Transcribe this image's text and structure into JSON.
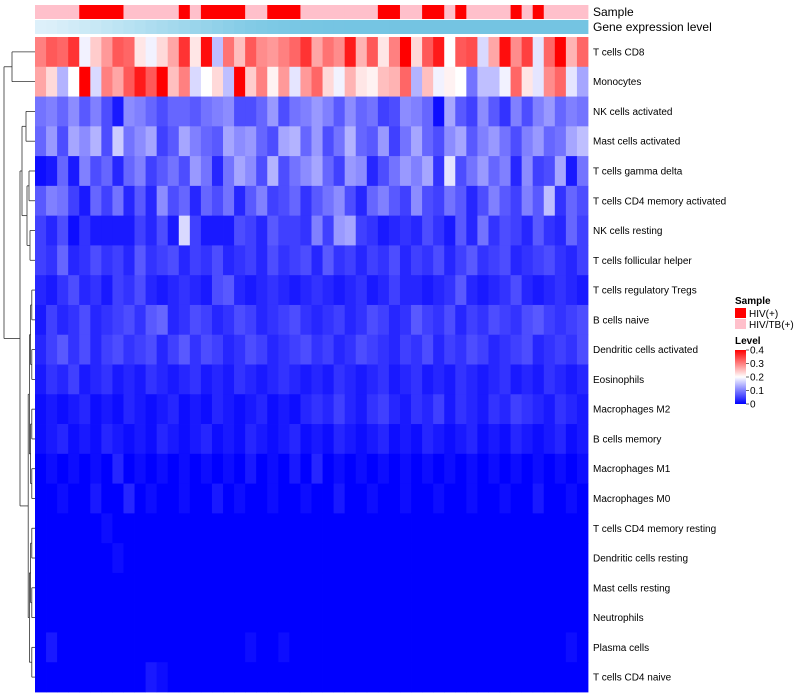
{
  "chart_data": {
    "type": "heatmap",
    "title": "",
    "column_annotations": [
      {
        "name": "Sample",
        "label": "Sample"
      },
      {
        "name": "Gene expression level",
        "label": "Gene expression level"
      }
    ],
    "rows": [
      "T cells CD8",
      "Monocytes",
      "NK cells activated",
      "Mast cells activated",
      "T cells gamma delta",
      "T cells CD4 memory activated",
      "NK cells resting",
      "T cells follicular helper",
      "T cells regulatory  Tregs",
      "B cells naive",
      "Dendritic cells activated",
      "Eosinophils",
      "Macrophages M2",
      "B cells memory",
      "Macrophages M1",
      "Macrophages M0",
      "T cells CD4 memory resting",
      "Dendritic cells resting",
      "Mast cells resting",
      "Neutrophils",
      "Plasma cells",
      "T cells CD4 naive"
    ],
    "sample_groups": [
      1,
      1,
      1,
      1,
      0,
      0,
      0,
      0,
      1,
      1,
      1,
      1,
      1,
      0,
      1,
      0,
      0,
      0,
      0,
      1,
      1,
      0,
      0,
      0,
      1,
      1,
      1,
      1,
      1,
      1,
      1,
      0,
      0,
      1,
      1,
      0,
      0,
      1,
      0,
      1,
      1,
      1,
      1,
      0,
      1,
      0,
      1,
      1,
      1,
      1
    ],
    "expression_level_colors": [
      "#ddf0fa",
      "#dbeff9",
      "#d6edf8",
      "#d1ebf7",
      "#cceaf6",
      "#c8e8f5",
      "#c2e6f4",
      "#bde4f3",
      "#b8e2f2",
      "#b3e0f1",
      "#aeddf0",
      "#a9dbee",
      "#a4d9ed",
      "#9fd7ec",
      "#9ad5eb",
      "#96d3ea",
      "#91d1e9",
      "#8ccfe8",
      "#87cde7",
      "#83cbe6",
      "#80cae5",
      "#7dc9e5",
      "#7bc8e4",
      "#79c7e4",
      "#78c6e3",
      "#77c6e3",
      "#76c5e3",
      "#76c5e3",
      "#75c5e3",
      "#75c5e3",
      "#75c5e3",
      "#75c5e3",
      "#74c4e2",
      "#74c4e2",
      "#74c4e2",
      "#74c4e2",
      "#74c4e2",
      "#74c4e2",
      "#74c4e2",
      "#74c4e2",
      "#74c4e2",
      "#74c4e2",
      "#74c4e2",
      "#74c4e2",
      "#74c4e2",
      "#74c4e2",
      "#74c4e2",
      "#74c4e2",
      "#74c4e2",
      "#74c4e2"
    ],
    "value_range": [
      0,
      0.4
    ],
    "color_scale": [
      "#0000ff",
      "#ffffff",
      "#ff0000"
    ],
    "legend": {
      "sample_title": "Sample",
      "sample_entries": [
        {
          "label": "HIV(+)",
          "color": "#ff0000"
        },
        {
          "label": "HIV/TB(+)",
          "color": "#ffc0cb"
        }
      ],
      "level_title": "Level",
      "level_ticks": [
        {
          "value": 0.4,
          "label": "0.4"
        },
        {
          "value": 0.3,
          "label": "0.3"
        },
        {
          "value": 0.2,
          "label": "0.2"
        },
        {
          "value": 0.1,
          "label": "0.1"
        },
        {
          "value": 0,
          "label": "0"
        }
      ]
    },
    "values": [
      [
        0.3,
        0.33,
        0.32,
        0.36,
        0.19,
        0.24,
        0.28,
        0.33,
        0.32,
        0.22,
        0.19,
        0.23,
        0.27,
        0.36,
        0.22,
        0.39,
        0.15,
        0.31,
        0.25,
        0.33,
        0.29,
        0.28,
        0.3,
        0.32,
        0.36,
        0.27,
        0.31,
        0.29,
        0.38,
        0.26,
        0.33,
        0.22,
        0.3,
        0.42,
        0.23,
        0.33,
        0.38,
        0.2,
        0.33,
        0.34,
        0.17,
        0.27,
        0.39,
        0.29,
        0.35,
        0.18,
        0.32,
        0.4,
        0.26,
        0.32
      ],
      [
        0.27,
        0.23,
        0.14,
        0.2,
        0.4,
        0.17,
        0.3,
        0.27,
        0.33,
        0.38,
        0.33,
        0.4,
        0.25,
        0.3,
        0.17,
        0.2,
        0.23,
        0.15,
        0.4,
        0.24,
        0.3,
        0.21,
        0.28,
        0.18,
        0.28,
        0.32,
        0.23,
        0.19,
        0.26,
        0.22,
        0.21,
        0.25,
        0.26,
        0.32,
        0.14,
        0.25,
        0.19,
        0.21,
        0.2,
        0.09,
        0.15,
        0.15,
        0.19,
        0.32,
        0.22,
        0.18,
        0.29,
        0.32,
        0.18,
        0.13
      ],
      [
        0.09,
        0.1,
        0.08,
        0.11,
        0.07,
        0.1,
        0.06,
        0.02,
        0.11,
        0.1,
        0.08,
        0.06,
        0.08,
        0.08,
        0.07,
        0.09,
        0.1,
        0.11,
        0.06,
        0.06,
        0.08,
        0.12,
        0.06,
        0.09,
        0.1,
        0.12,
        0.1,
        0.07,
        0.11,
        0.08,
        0.09,
        0.05,
        0.06,
        0.11,
        0.1,
        0.08,
        0.01,
        0.13,
        0.07,
        0.05,
        0.11,
        0.07,
        0.04,
        0.1,
        0.06,
        0.1,
        0.12,
        0.08,
        0.1,
        0.09
      ],
      [
        0.08,
        0.12,
        0.06,
        0.13,
        0.11,
        0.14,
        0.06,
        0.16,
        0.09,
        0.11,
        0.13,
        0.05,
        0.07,
        0.13,
        0.1,
        0.08,
        0.07,
        0.13,
        0.11,
        0.12,
        0.08,
        0.06,
        0.13,
        0.14,
        0.08,
        0.12,
        0.06,
        0.09,
        0.14,
        0.08,
        0.07,
        0.12,
        0.05,
        0.09,
        0.13,
        0.08,
        0.06,
        0.11,
        0.13,
        0.07,
        0.1,
        0.12,
        0.09,
        0.06,
        0.1,
        0.12,
        0.08,
        0.09,
        0.13,
        0.15
      ],
      [
        0.01,
        0.02,
        0.08,
        0.02,
        0.1,
        0.06,
        0.08,
        0.03,
        0.08,
        0.1,
        0.05,
        0.07,
        0.09,
        0.06,
        0.12,
        0.09,
        0.03,
        0.09,
        0.13,
        0.11,
        0.06,
        0.14,
        0.06,
        0.09,
        0.11,
        0.13,
        0.08,
        0.05,
        0.12,
        0.11,
        0.03,
        0.06,
        0.09,
        0.12,
        0.1,
        0.13,
        0.04,
        0.18,
        0.06,
        0.09,
        0.12,
        0.08,
        0.1,
        0.03,
        0.11,
        0.05,
        0.06,
        0.13,
        0.02,
        0.09
      ],
      [
        0.07,
        0.1,
        0.09,
        0.05,
        0.02,
        0.08,
        0.05,
        0.09,
        0.03,
        0.07,
        0.03,
        0.11,
        0.06,
        0.08,
        0.03,
        0.08,
        0.06,
        0.09,
        0.03,
        0.07,
        0.1,
        0.05,
        0.06,
        0.08,
        0.04,
        0.07,
        0.09,
        0.11,
        0.06,
        0.03,
        0.08,
        0.1,
        0.07,
        0.05,
        0.11,
        0.06,
        0.05,
        0.09,
        0.07,
        0.03,
        0.06,
        0.1,
        0.07,
        0.05,
        0.1,
        0.07,
        0.15,
        0.04,
        0.08,
        0.06
      ],
      [
        0.05,
        0.03,
        0.06,
        0.01,
        0.04,
        0.02,
        0.02,
        0.02,
        0.02,
        0.05,
        0.03,
        0.06,
        0.02,
        0.17,
        0.05,
        0.02,
        0.02,
        0.02,
        0.06,
        0.05,
        0.03,
        0.07,
        0.05,
        0.05,
        0.04,
        0.1,
        0.05,
        0.12,
        0.13,
        0.05,
        0.04,
        0.02,
        0.03,
        0.04,
        0.03,
        0.06,
        0.04,
        0.02,
        0.07,
        0.03,
        0.09,
        0.04,
        0.06,
        0.05,
        0.03,
        0.07,
        0.04,
        0.03,
        0.08,
        0.05
      ],
      [
        0.05,
        0.04,
        0.08,
        0.03,
        0.04,
        0.06,
        0.04,
        0.05,
        0.03,
        0.07,
        0.04,
        0.05,
        0.06,
        0.03,
        0.05,
        0.04,
        0.06,
        0.03,
        0.04,
        0.05,
        0.03,
        0.06,
        0.04,
        0.05,
        0.06,
        0.03,
        0.07,
        0.04,
        0.05,
        0.03,
        0.05,
        0.04,
        0.06,
        0.03,
        0.05,
        0.04,
        0.06,
        0.03,
        0.05,
        0.07,
        0.04,
        0.05,
        0.06,
        0.03,
        0.04,
        0.05,
        0.06,
        0.04,
        0.03,
        0.05
      ],
      [
        0.03,
        0.02,
        0.04,
        0.06,
        0.03,
        0.04,
        0.02,
        0.05,
        0.04,
        0.06,
        0.03,
        0.02,
        0.03,
        0.04,
        0.03,
        0.02,
        0.06,
        0.07,
        0.03,
        0.02,
        0.03,
        0.04,
        0.03,
        0.02,
        0.03,
        0.04,
        0.03,
        0.02,
        0.03,
        0.04,
        0.02,
        0.03,
        0.05,
        0.03,
        0.03,
        0.02,
        0.03,
        0.04,
        0.07,
        0.03,
        0.02,
        0.03,
        0.04,
        0.06,
        0.03,
        0.02,
        0.03,
        0.04,
        0.03,
        0.02
      ],
      [
        0.02,
        0.05,
        0.03,
        0.04,
        0.06,
        0.03,
        0.04,
        0.05,
        0.06,
        0.04,
        0.07,
        0.08,
        0.03,
        0.04,
        0.06,
        0.05,
        0.03,
        0.04,
        0.06,
        0.05,
        0.03,
        0.04,
        0.05,
        0.06,
        0.04,
        0.03,
        0.04,
        0.05,
        0.03,
        0.04,
        0.06,
        0.05,
        0.03,
        0.04,
        0.07,
        0.05,
        0.04,
        0.06,
        0.03,
        0.05,
        0.04,
        0.06,
        0.05,
        0.04,
        0.06,
        0.07,
        0.05,
        0.04,
        0.05,
        0.06
      ],
      [
        0.03,
        0.05,
        0.07,
        0.04,
        0.06,
        0.03,
        0.05,
        0.06,
        0.04,
        0.05,
        0.06,
        0.03,
        0.05,
        0.07,
        0.04,
        0.06,
        0.05,
        0.03,
        0.04,
        0.06,
        0.05,
        0.03,
        0.04,
        0.05,
        0.06,
        0.04,
        0.05,
        0.03,
        0.04,
        0.06,
        0.05,
        0.04,
        0.03,
        0.05,
        0.04,
        0.06,
        0.03,
        0.05,
        0.04,
        0.06,
        0.05,
        0.03,
        0.04,
        0.05,
        0.06,
        0.03,
        0.04,
        0.05,
        0.04,
        0.06
      ],
      [
        0.02,
        0.04,
        0.03,
        0.05,
        0.02,
        0.03,
        0.04,
        0.02,
        0.03,
        0.02,
        0.04,
        0.03,
        0.02,
        0.03,
        0.04,
        0.02,
        0.03,
        0.02,
        0.04,
        0.03,
        0.02,
        0.03,
        0.04,
        0.03,
        0.02,
        0.03,
        0.02,
        0.04,
        0.03,
        0.02,
        0.03,
        0.04,
        0.02,
        0.03,
        0.04,
        0.02,
        0.03,
        0.02,
        0.04,
        0.03,
        0.02,
        0.03,
        0.04,
        0.02,
        0.03,
        0.02,
        0.04,
        0.03,
        0.02,
        0.03
      ],
      [
        0.01,
        0.02,
        0.01,
        0.02,
        0.03,
        0.01,
        0.02,
        0.01,
        0.03,
        0.02,
        0.01,
        0.02,
        0.03,
        0.01,
        0.02,
        0.01,
        0.03,
        0.02,
        0.01,
        0.02,
        0.03,
        0.01,
        0.02,
        0.01,
        0.03,
        0.04,
        0.03,
        0.05,
        0.03,
        0.02,
        0.04,
        0.05,
        0.03,
        0.02,
        0.04,
        0.03,
        0.05,
        0.02,
        0.04,
        0.03,
        0.02,
        0.04,
        0.03,
        0.05,
        0.04,
        0.03,
        0.02,
        0.04,
        0.03,
        0.02
      ],
      [
        0.01,
        0.02,
        0.03,
        0.01,
        0.02,
        0.01,
        0.03,
        0.02,
        0.01,
        0.02,
        0.01,
        0.03,
        0.02,
        0.01,
        0.02,
        0.03,
        0.01,
        0.02,
        0.01,
        0.03,
        0.02,
        0.01,
        0.02,
        0.03,
        0.01,
        0.02,
        0.01,
        0.03,
        0.02,
        0.01,
        0.02,
        0.03,
        0.01,
        0.02,
        0.01,
        0.03,
        0.02,
        0.01,
        0.02,
        0.03,
        0.01,
        0.02,
        0.01,
        0.03,
        0.02,
        0.01,
        0.02,
        0.03,
        0.01,
        0.02
      ],
      [
        0.0,
        0.01,
        0.0,
        0.01,
        0.0,
        0.01,
        0.0,
        0.03,
        0.0,
        0.01,
        0.0,
        0.01,
        0.0,
        0.01,
        0.0,
        0.01,
        0.0,
        0.01,
        0.0,
        0.02,
        0.0,
        0.01,
        0.0,
        0.02,
        0.0,
        0.03,
        0.0,
        0.01,
        0.0,
        0.01,
        0.0,
        0.01,
        0.0,
        0.01,
        0.0,
        0.01,
        0.0,
        0.01,
        0.0,
        0.01,
        0.0,
        0.01,
        0.0,
        0.01,
        0.0,
        0.01,
        0.0,
        0.01,
        0.0,
        0.01
      ],
      [
        0.0,
        0.0,
        0.01,
        0.0,
        0.0,
        0.02,
        0.0,
        0.0,
        0.03,
        0.0,
        0.01,
        0.0,
        0.0,
        0.01,
        0.0,
        0.0,
        0.02,
        0.0,
        0.01,
        0.0,
        0.0,
        0.01,
        0.0,
        0.0,
        0.01,
        0.0,
        0.0,
        0.02,
        0.0,
        0.0,
        0.01,
        0.0,
        0.0,
        0.01,
        0.0,
        0.0,
        0.01,
        0.0,
        0.0,
        0.01,
        0.0,
        0.0,
        0.01,
        0.0,
        0.0,
        0.02,
        0.0,
        0.0,
        0.01,
        0.0
      ],
      [
        0.0,
        0.0,
        0.0,
        0.0,
        0.0,
        0.0,
        0.01,
        0.0,
        0.0,
        0.0,
        0.0,
        0.0,
        0.0,
        0.0,
        0.0,
        0.0,
        0.0,
        0.0,
        0.0,
        0.0,
        0.0,
        0.0,
        0.0,
        0.0,
        0.0,
        0.0,
        0.0,
        0.0,
        0.0,
        0.0,
        0.0,
        0.0,
        0.0,
        0.0,
        0.0,
        0.0,
        0.0,
        0.0,
        0.0,
        0.0,
        0.0,
        0.0,
        0.0,
        0.0,
        0.0,
        0.0,
        0.0,
        0.0,
        0.0,
        0.0
      ],
      [
        0.0,
        0.0,
        0.0,
        0.0,
        0.0,
        0.0,
        0.0,
        0.01,
        0.0,
        0.0,
        0.0,
        0.0,
        0.0,
        0.0,
        0.0,
        0.0,
        0.0,
        0.0,
        0.0,
        0.0,
        0.0,
        0.0,
        0.0,
        0.0,
        0.0,
        0.0,
        0.0,
        0.0,
        0.0,
        0.0,
        0.0,
        0.0,
        0.0,
        0.0,
        0.0,
        0.0,
        0.0,
        0.0,
        0.0,
        0.0,
        0.0,
        0.0,
        0.0,
        0.0,
        0.0,
        0.0,
        0.0,
        0.0,
        0.0,
        0.0
      ],
      [
        0.0,
        0.0,
        0.0,
        0.0,
        0.0,
        0.0,
        0.0,
        0.0,
        0.0,
        0.0,
        0.0,
        0.0,
        0.0,
        0.0,
        0.0,
        0.0,
        0.0,
        0.0,
        0.0,
        0.0,
        0.0,
        0.0,
        0.0,
        0.0,
        0.0,
        0.0,
        0.0,
        0.0,
        0.0,
        0.0,
        0.0,
        0.0,
        0.0,
        0.0,
        0.0,
        0.0,
        0.0,
        0.0,
        0.0,
        0.0,
        0.0,
        0.0,
        0.0,
        0.0,
        0.0,
        0.0,
        0.0,
        0.0,
        0.0,
        0.0
      ],
      [
        0.0,
        0.0,
        0.0,
        0.0,
        0.0,
        0.0,
        0.0,
        0.0,
        0.0,
        0.0,
        0.0,
        0.0,
        0.0,
        0.0,
        0.0,
        0.0,
        0.0,
        0.0,
        0.0,
        0.0,
        0.0,
        0.0,
        0.0,
        0.0,
        0.0,
        0.0,
        0.0,
        0.0,
        0.0,
        0.0,
        0.0,
        0.0,
        0.0,
        0.0,
        0.0,
        0.0,
        0.0,
        0.0,
        0.0,
        0.0,
        0.0,
        0.0,
        0.0,
        0.0,
        0.0,
        0.0,
        0.0,
        0.0,
        0.0,
        0.0
      ],
      [
        0.0,
        0.02,
        0.0,
        0.0,
        0.0,
        0.0,
        0.0,
        0.0,
        0.0,
        0.0,
        0.0,
        0.0,
        0.0,
        0.0,
        0.0,
        0.0,
        0.0,
        0.0,
        0.0,
        0.01,
        0.0,
        0.0,
        0.01,
        0.0,
        0.0,
        0.0,
        0.0,
        0.0,
        0.0,
        0.0,
        0.0,
        0.0,
        0.0,
        0.0,
        0.0,
        0.0,
        0.0,
        0.0,
        0.0,
        0.0,
        0.0,
        0.0,
        0.0,
        0.0,
        0.0,
        0.0,
        0.0,
        0.0,
        0.01,
        0.0
      ],
      [
        0.0,
        0.0,
        0.0,
        0.0,
        0.0,
        0.0,
        0.0,
        0.0,
        0.0,
        0.0,
        0.02,
        0.01,
        0.0,
        0.0,
        0.0,
        0.0,
        0.0,
        0.0,
        0.0,
        0.0,
        0.0,
        0.0,
        0.0,
        0.0,
        0.0,
        0.0,
        0.0,
        0.0,
        0.0,
        0.0,
        0.0,
        0.0,
        0.0,
        0.0,
        0.0,
        0.0,
        0.0,
        0.0,
        0.0,
        0.0,
        0.0,
        0.0,
        0.0,
        0.0,
        0.0,
        0.0,
        0.0,
        0.0,
        0.0,
        0.0
      ]
    ]
  }
}
